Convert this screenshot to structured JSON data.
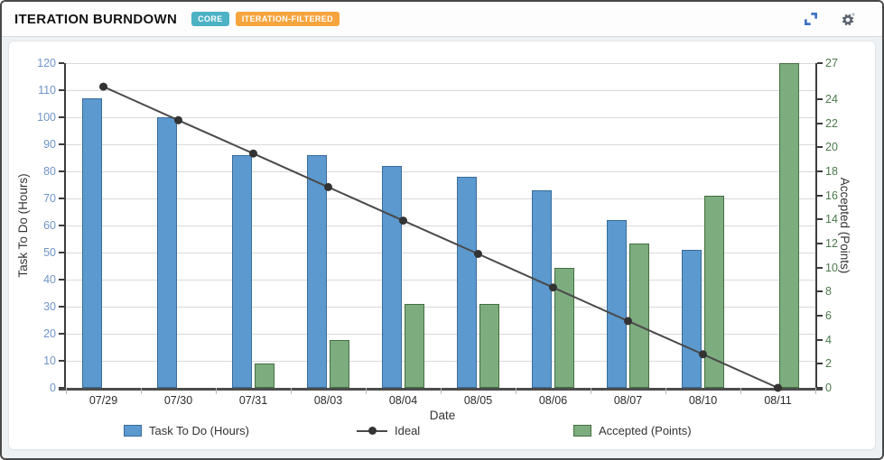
{
  "header": {
    "title": "ITERATION BURNDOWN",
    "badges": [
      {
        "label": "CORE",
        "bg": "#4cb2c4"
      },
      {
        "label": "ITERATION-FILTERED",
        "bg": "#f6a43e"
      }
    ],
    "actions": [
      {
        "name": "expand",
        "color": "#3e71c6"
      },
      {
        "name": "settings",
        "color": "#5a636d"
      }
    ]
  },
  "chart_data": {
    "type": "bar",
    "categories": [
      "07/29",
      "07/30",
      "07/31",
      "08/03",
      "08/04",
      "08/05",
      "08/06",
      "08/07",
      "08/10",
      "08/11"
    ],
    "series": [
      {
        "name": "Task To Do (Hours)",
        "type": "bar",
        "axis": "left",
        "color": "#5b99cf",
        "border_color": "#3a6c99",
        "values": [
          107,
          100,
          86,
          86,
          82,
          78,
          73,
          62,
          51,
          0
        ]
      },
      {
        "name": "Ideal",
        "type": "line",
        "axis": "left",
        "color": "#4a4a4a",
        "marker_color": "#333333",
        "values": [
          111.3,
          98.9,
          86.6,
          74.2,
          61.8,
          49.5,
          37.1,
          24.7,
          12.4,
          0
        ]
      },
      {
        "name": "Accepted (Points)",
        "type": "bar",
        "axis": "right",
        "color": "#7dac7f",
        "border_color": "#44703f",
        "values": [
          0,
          0,
          2,
          4,
          7,
          7,
          10,
          12,
          16,
          27
        ]
      }
    ],
    "xlabel": "Date",
    "left_axis": {
      "label": "Task To Do (Hours)",
      "min": 0,
      "max": 120,
      "tick_interval": 10,
      "tick_color": "#6f94c6"
    },
    "right_axis": {
      "label": "Accepted (Points)",
      "min": 0,
      "max": 27,
      "ticks": [
        0,
        2,
        4,
        6,
        8,
        10,
        12,
        14,
        16,
        18,
        20,
        22,
        24,
        27
      ],
      "tick_color": "#4a7a4a"
    },
    "grid": true,
    "legend_position": "bottom"
  }
}
